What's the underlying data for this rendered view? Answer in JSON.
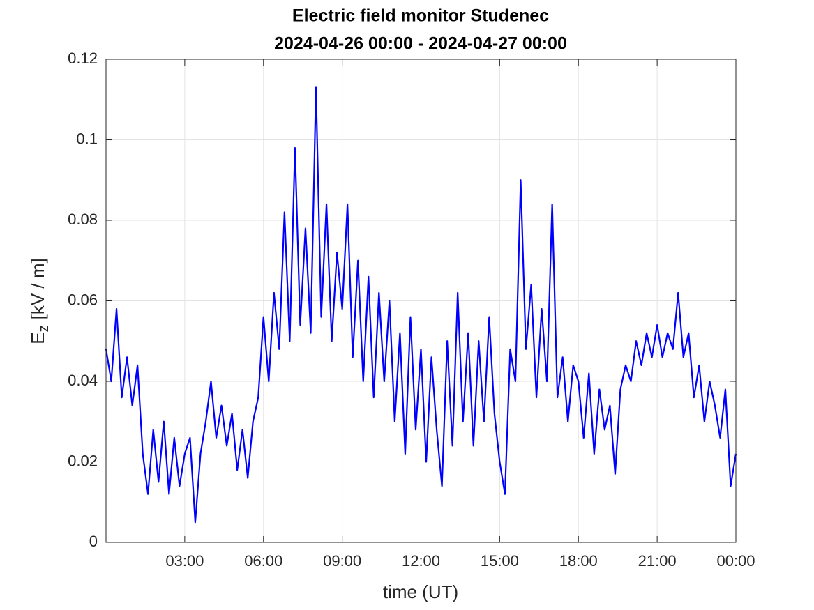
{
  "chart_data": {
    "type": "line",
    "title": "Electric field monitor Studenec",
    "subtitle": "2024-04-26 00:00 - 2024-04-27 00:00",
    "xlabel": "time (UT)",
    "ylabel": {
      "main": "E",
      "subscript": "z",
      "unit": "[kV / m]"
    },
    "xlim": [
      0,
      24
    ],
    "xticks": [
      {
        "value": 3,
        "label": "03:00"
      },
      {
        "value": 6,
        "label": "06:00"
      },
      {
        "value": 9,
        "label": "09:00"
      },
      {
        "value": 12,
        "label": "12:00"
      },
      {
        "value": 15,
        "label": "15:00"
      },
      {
        "value": 18,
        "label": "18:00"
      },
      {
        "value": 21,
        "label": "21:00"
      },
      {
        "value": 24,
        "label": "00:00"
      }
    ],
    "ylim": [
      0,
      0.12
    ],
    "yticks": [
      0,
      0.02,
      0.04,
      0.06,
      0.08,
      0.1,
      0.12
    ],
    "grid": true,
    "x": [
      0,
      0.2,
      0.4,
      0.6,
      0.8,
      1,
      1.2,
      1.4,
      1.6,
      1.8,
      2,
      2.2,
      2.4,
      2.6,
      2.8,
      3,
      3.2,
      3.4,
      3.6,
      3.8,
      4,
      4.2,
      4.4,
      4.6,
      4.8,
      5,
      5.2,
      5.4,
      5.6,
      5.8,
      6,
      6.2,
      6.4,
      6.6,
      6.8,
      7,
      7.2,
      7.4,
      7.6,
      7.8,
      8,
      8.2,
      8.4,
      8.6,
      8.8,
      9,
      9.2,
      9.4,
      9.6,
      9.8,
      10,
      10.2,
      10.4,
      10.6,
      10.8,
      11,
      11.2,
      11.4,
      11.6,
      11.8,
      12,
      12.2,
      12.4,
      12.6,
      12.8,
      13,
      13.2,
      13.4,
      13.6,
      13.8,
      14,
      14.2,
      14.4,
      14.6,
      14.8,
      15,
      15.2,
      15.4,
      15.6,
      15.8,
      16,
      16.2,
      16.4,
      16.6,
      16.8,
      17,
      17.2,
      17.4,
      17.6,
      17.8,
      18,
      18.2,
      18.4,
      18.6,
      18.8,
      19,
      19.2,
      19.4,
      19.6,
      19.8,
      20,
      20.2,
      20.4,
      20.6,
      20.8,
      21,
      21.2,
      21.4,
      21.6,
      21.8,
      22,
      22.2,
      22.4,
      22.6,
      22.8,
      23,
      23.2,
      23.4,
      23.6,
      23.8,
      24
    ],
    "series": [
      {
        "name": "Ez",
        "color": "#0000ff",
        "values": [
          0.048,
          0.04,
          0.058,
          0.036,
          0.046,
          0.034,
          0.044,
          0.022,
          0.012,
          0.028,
          0.015,
          0.03,
          0.012,
          0.026,
          0.014,
          0.022,
          0.026,
          0.005,
          0.022,
          0.03,
          0.04,
          0.026,
          0.034,
          0.024,
          0.032,
          0.018,
          0.028,
          0.016,
          0.03,
          0.036,
          0.056,
          0.04,
          0.062,
          0.048,
          0.082,
          0.05,
          0.098,
          0.054,
          0.078,
          0.052,
          0.113,
          0.056,
          0.084,
          0.05,
          0.072,
          0.058,
          0.084,
          0.046,
          0.07,
          0.04,
          0.066,
          0.036,
          0.062,
          0.04,
          0.06,
          0.03,
          0.052,
          0.022,
          0.056,
          0.028,
          0.048,
          0.02,
          0.046,
          0.028,
          0.014,
          0.05,
          0.024,
          0.062,
          0.03,
          0.052,
          0.024,
          0.05,
          0.03,
          0.056,
          0.032,
          0.02,
          0.012,
          0.048,
          0.04,
          0.09,
          0.048,
          0.064,
          0.036,
          0.058,
          0.04,
          0.084,
          0.036,
          0.046,
          0.03,
          0.044,
          0.04,
          0.026,
          0.042,
          0.022,
          0.038,
          0.028,
          0.034,
          0.017,
          0.038,
          0.044,
          0.04,
          0.05,
          0.044,
          0.052,
          0.046,
          0.054,
          0.046,
          0.052,
          0.048,
          0.062,
          0.046,
          0.052,
          0.036,
          0.044,
          0.03,
          0.04,
          0.034,
          0.026,
          0.038,
          0.014,
          0.022
        ]
      }
    ]
  }
}
